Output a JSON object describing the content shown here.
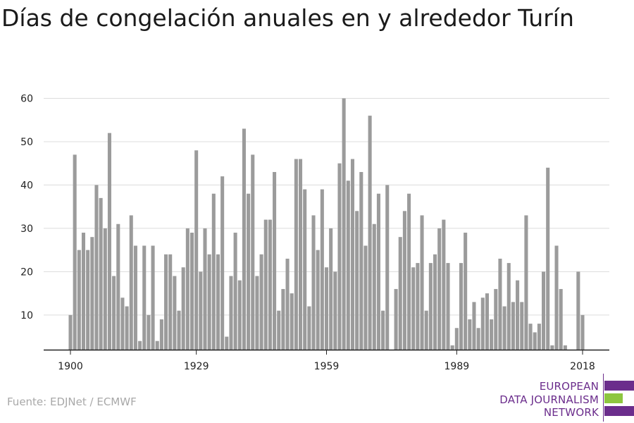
{
  "title": "Días de congelación anuales en y alrededor Turín",
  "source": "Fuente: EDJNet / ECMWF",
  "logo": {
    "lines": [
      "EUROPEAN",
      "DATA JOURNALISM",
      "NETWORK"
    ],
    "colors": {
      "purple": "#6b2d8c",
      "green": "#8dc63f"
    }
  },
  "chart_data": {
    "type": "bar",
    "title": "Días de congelación anuales en y alrededor Turín",
    "xlabel": "",
    "ylabel": "",
    "ylim": [
      2,
      60
    ],
    "xlim": [
      1900,
      2018
    ],
    "yticks": [
      10,
      20,
      30,
      40,
      50,
      60
    ],
    "xticks": [
      1900,
      1929,
      1959,
      1989,
      2018
    ],
    "grid": true,
    "bar_color": "#9b9b9b",
    "x": [
      1900,
      1901,
      1902,
      1903,
      1904,
      1905,
      1906,
      1907,
      1908,
      1909,
      1910,
      1911,
      1912,
      1913,
      1914,
      1915,
      1916,
      1917,
      1918,
      1919,
      1920,
      1921,
      1922,
      1923,
      1924,
      1925,
      1926,
      1927,
      1928,
      1929,
      1930,
      1931,
      1932,
      1933,
      1934,
      1935,
      1936,
      1937,
      1938,
      1939,
      1940,
      1941,
      1942,
      1943,
      1944,
      1945,
      1946,
      1947,
      1948,
      1949,
      1950,
      1951,
      1952,
      1953,
      1954,
      1955,
      1956,
      1957,
      1958,
      1959,
      1960,
      1961,
      1962,
      1963,
      1964,
      1965,
      1966,
      1967,
      1968,
      1969,
      1970,
      1971,
      1972,
      1973,
      1974,
      1975,
      1976,
      1977,
      1978,
      1979,
      1980,
      1981,
      1982,
      1983,
      1984,
      1985,
      1986,
      1987,
      1988,
      1989,
      1990,
      1991,
      1992,
      1993,
      1994,
      1995,
      1996,
      1997,
      1998,
      1999,
      2000,
      2001,
      2002,
      2003,
      2004,
      2005,
      2006,
      2007,
      2008,
      2009,
      2010,
      2011,
      2012,
      2013,
      2014,
      2015,
      2016,
      2017,
      2018
    ],
    "values": [
      10,
      47,
      25,
      29,
      25,
      28,
      40,
      37,
      30,
      52,
      19,
      31,
      14,
      12,
      33,
      26,
      4,
      26,
      10,
      26,
      4,
      9,
      24,
      24,
      19,
      11,
      21,
      30,
      29,
      48,
      20,
      30,
      24,
      38,
      24,
      42,
      5,
      19,
      29,
      18,
      53,
      38,
      47,
      19,
      24,
      32,
      32,
      43,
      11,
      16,
      23,
      15,
      46,
      46,
      39,
      12,
      33,
      25,
      39,
      21,
      30,
      20,
      45,
      60,
      41,
      46,
      34,
      43,
      26,
      56,
      31,
      38,
      11,
      40,
      2,
      16,
      28,
      34,
      38,
      21,
      22,
      33,
      11,
      22,
      24,
      30,
      32,
      22,
      3,
      7,
      22,
      29,
      9,
      13,
      7,
      14,
      15,
      9,
      16,
      23,
      12,
      22,
      13,
      18,
      13,
      33,
      8,
      6,
      8,
      20,
      44,
      3,
      26,
      16,
      3,
      0,
      0,
      20,
      10
    ]
  }
}
